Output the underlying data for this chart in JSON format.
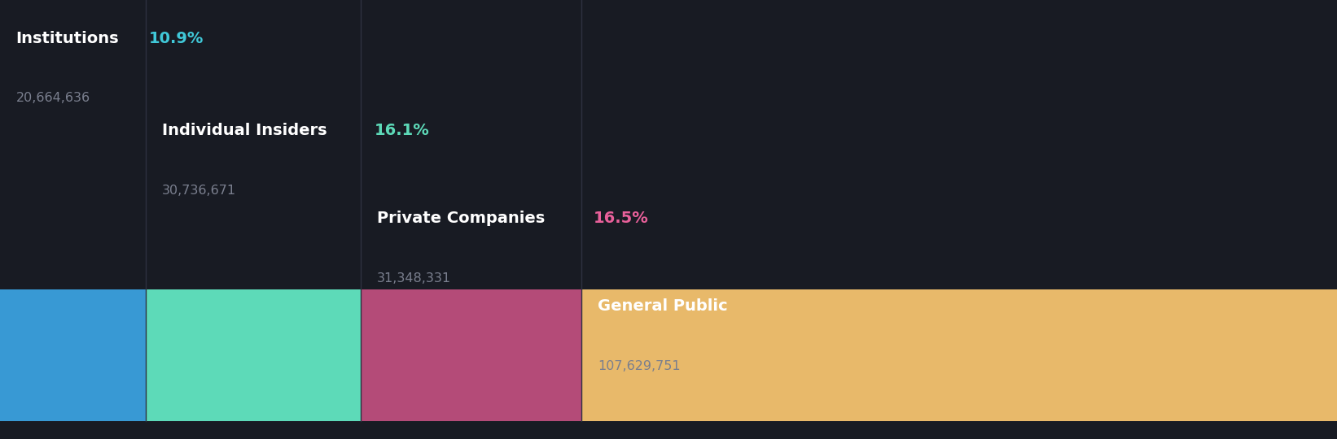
{
  "background_color": "#181b23",
  "segments": [
    {
      "label": "Institutions",
      "pct": 10.9,
      "value": "20,664,636",
      "color": "#3899d4",
      "label_color": "#ffffff",
      "pct_color": "#40c8d8"
    },
    {
      "label": "Individual Insiders",
      "pct": 16.1,
      "value": "30,736,671",
      "color": "#5ddab8",
      "label_color": "#ffffff",
      "pct_color": "#5ddab8"
    },
    {
      "label": "Private Companies",
      "pct": 16.5,
      "value": "31,348,331",
      "color": "#b44b78",
      "label_color": "#ffffff",
      "pct_color": "#e8609a"
    },
    {
      "label": "General Public",
      "pct": 56.5,
      "value": "107,629,751",
      "color": "#e8b96a",
      "label_color": "#ffffff",
      "pct_color": "#e8b96a"
    }
  ],
  "total_pct": 100.0,
  "label_fontsize": 14,
  "value_fontsize": 11.5,
  "pct_fontsize": 14,
  "divider_color": "#2e3140",
  "value_color": "#7a7f8e"
}
